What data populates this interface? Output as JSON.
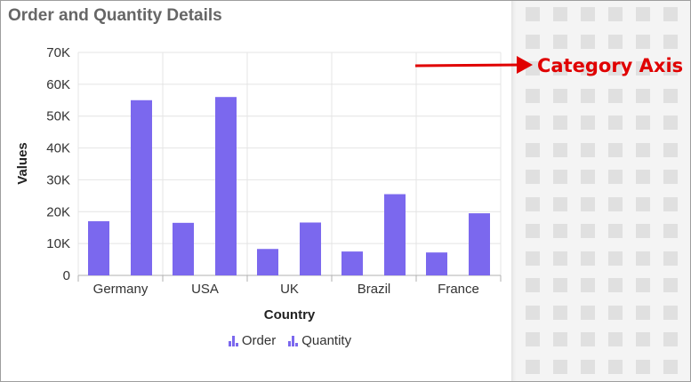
{
  "title": "Order and Quantity Details",
  "annotation": "Category Axis",
  "colors": {
    "series": "#7B68EE",
    "annotation": "#E00000",
    "grid": "#e4e4e4"
  },
  "chart_data": {
    "type": "bar",
    "title": "Order and Quantity Details",
    "xlabel": "Country",
    "ylabel": "Values",
    "categories": [
      "Germany",
      "USA",
      "UK",
      "Brazil",
      "France"
    ],
    "series": [
      {
        "name": "Order",
        "values": [
          17000,
          16500,
          8300,
          7500,
          7200
        ]
      },
      {
        "name": "Quantity",
        "values": [
          55000,
          56000,
          16600,
          25500,
          19500
        ]
      }
    ],
    "ylim": [
      0,
      70000
    ],
    "yticks": [
      0,
      10000,
      20000,
      30000,
      40000,
      50000,
      60000,
      70000
    ],
    "ytick_labels": [
      "0",
      "10K",
      "20K",
      "30K",
      "40K",
      "50K",
      "60K",
      "70K"
    ],
    "grid": true,
    "legend_position": "bottom"
  }
}
